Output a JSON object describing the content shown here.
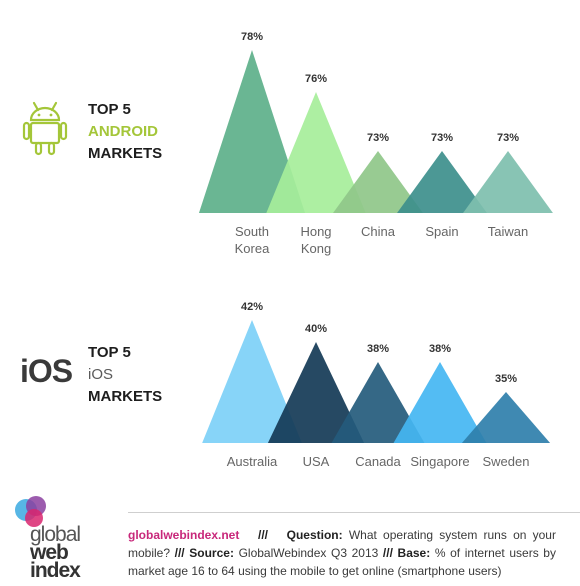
{
  "chart_data": [
    {
      "type": "area",
      "title": "TOP 5 ANDROID MARKETS",
      "categories": [
        "South Korea",
        "Hong Kong",
        "China",
        "Spain",
        "Taiwan"
      ],
      "category_lines": [
        [
          "South",
          "Korea"
        ],
        [
          "Hong",
          "Kong"
        ],
        [
          "China"
        ],
        [
          "Spain"
        ],
        [
          "Taiwan"
        ]
      ],
      "values": [
        78,
        76,
        73,
        73,
        73
      ],
      "value_labels": [
        "78%",
        "76%",
        "73%",
        "73%",
        "73%"
      ],
      "colors": [
        "#5db08a",
        "#a6ee9a",
        "#8fc789",
        "#3d8f8c",
        "#7ebfae"
      ],
      "grid": false
    },
    {
      "type": "area",
      "title": "TOP 5 iOS MARKETS",
      "categories": [
        "Australia",
        "USA",
        "Canada",
        "Singapore",
        "Sweden"
      ],
      "category_lines": [
        [
          "Australia"
        ],
        [
          "USA"
        ],
        [
          "Canada"
        ],
        [
          "Singapore"
        ],
        [
          "Sweden"
        ]
      ],
      "values": [
        42,
        40,
        38,
        38,
        35
      ],
      "value_labels": [
        "42%",
        "40%",
        "38%",
        "38%",
        "35%"
      ],
      "colors": [
        "#7dd0f7",
        "#143a56",
        "#245b7c",
        "#44b6f2",
        "#2f7fab"
      ],
      "grid": false
    }
  ],
  "android": {
    "line1": "TOP 5",
    "line2": "ANDROID",
    "line3": "MARKETS",
    "icon": "android-robot-icon",
    "color": "#a4c639"
  },
  "ios": {
    "logo": "iOS",
    "line1": "TOP 5",
    "line2": "iOS",
    "line3": "MARKETS"
  },
  "footer": {
    "site": "globalwebindex.net",
    "sep": "///",
    "question_label": "Question:",
    "question": "What operating system runs on your mobile?",
    "source_label": "Source:",
    "source": "GlobalWebindex Q3 2013",
    "base_label": "Base:",
    "base": "% of internet users by market age 16 to 64 using the mobile to get online (smartphone users)"
  },
  "brand": {
    "line1": "global",
    "line2": "web",
    "line3": "index"
  }
}
